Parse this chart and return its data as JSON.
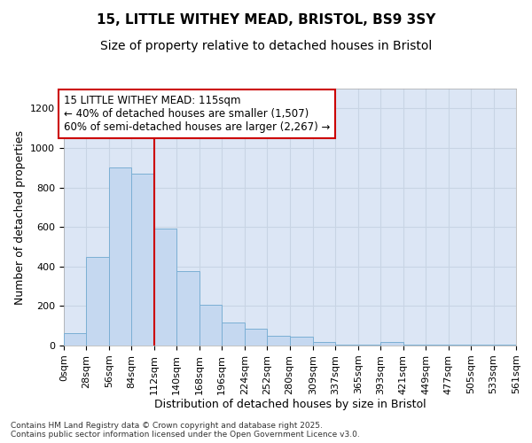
{
  "title1": "15, LITTLE WITHEY MEAD, BRISTOL, BS9 3SY",
  "title2": "Size of property relative to detached houses in Bristol",
  "xlabel": "Distribution of detached houses by size in Bristol",
  "ylabel": "Number of detached properties",
  "bar_values": [
    65,
    450,
    900,
    870,
    590,
    375,
    205,
    115,
    85,
    50,
    45,
    20,
    5,
    5,
    20,
    5,
    5,
    5,
    5,
    5
  ],
  "bin_edges": [
    0,
    28,
    56,
    84,
    112,
    140,
    168,
    196,
    224,
    252,
    280,
    309,
    337,
    365,
    393,
    421,
    449,
    477,
    505,
    533,
    561
  ],
  "bar_color": "#c5d8f0",
  "bar_edge_color": "#7bafd4",
  "grid_color": "#c8d4e4",
  "background_color": "#dce6f5",
  "vline_x": 112,
  "vline_color": "#cc0000",
  "annotation_text": "15 LITTLE WITHEY MEAD: 115sqm\n← 40% of detached houses are smaller (1,507)\n60% of semi-detached houses are larger (2,267) →",
  "annotation_box_facecolor": "#ffffff",
  "annotation_box_edge": "#cc0000",
  "ylim": [
    0,
    1300
  ],
  "yticks": [
    0,
    200,
    400,
    600,
    800,
    1000,
    1200
  ],
  "footer_text": "Contains HM Land Registry data © Crown copyright and database right 2025.\nContains public sector information licensed under the Open Government Licence v3.0.",
  "title1_fontsize": 11,
  "title2_fontsize": 10,
  "xlabel_fontsize": 9,
  "ylabel_fontsize": 9,
  "tick_fontsize": 8,
  "annotation_fontsize": 8.5,
  "fig_bg": "#ffffff"
}
